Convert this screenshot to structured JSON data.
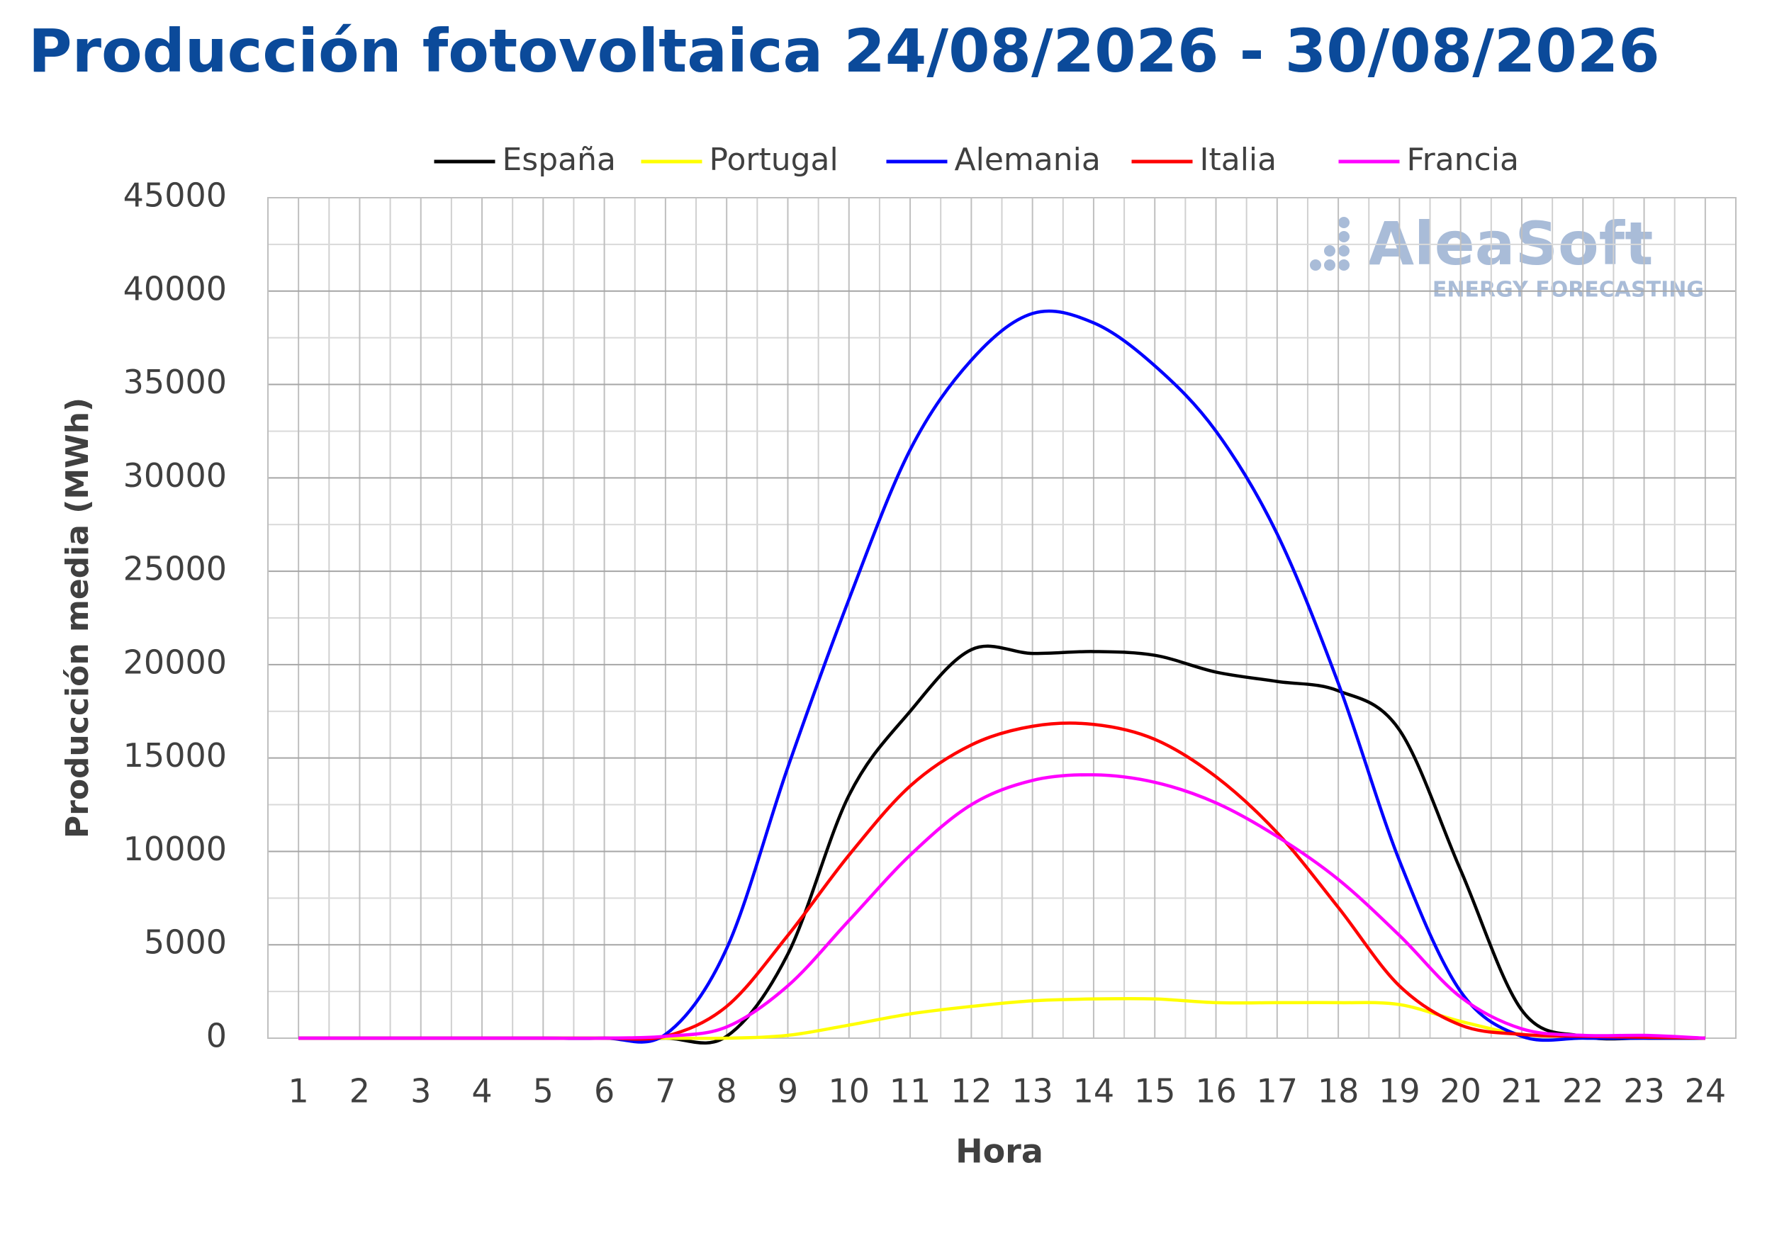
{
  "chart_data": {
    "type": "line",
    "title": "Producción fotovoltaica 24/08/2026 - 30/08/2026",
    "xlabel": "Hora",
    "ylabel": "Producción media (MWh)",
    "watermark": {
      "brand": "AleaSoft",
      "tagline": "ENERGY FORECASTING"
    },
    "x": [
      1,
      2,
      3,
      4,
      5,
      6,
      7,
      8,
      9,
      10,
      11,
      12,
      13,
      14,
      15,
      16,
      17,
      18,
      19,
      20,
      21,
      22,
      23,
      24
    ],
    "xlim": [
      0.5,
      24.5
    ],
    "xticks": [
      1,
      2,
      3,
      4,
      5,
      6,
      7,
      8,
      9,
      10,
      11,
      12,
      13,
      14,
      15,
      16,
      17,
      18,
      19,
      20,
      21,
      22,
      23,
      24
    ],
    "ylim": [
      0,
      45000
    ],
    "yticks": [
      0,
      5000,
      10000,
      15000,
      20000,
      25000,
      30000,
      35000,
      40000,
      45000
    ],
    "grid": true,
    "legend": "top",
    "series": [
      {
        "name": "España",
        "color": "#000000",
        "values": [
          0,
          0,
          0,
          0,
          0,
          0,
          0,
          100,
          4500,
          13000,
          17500,
          20800,
          20600,
          20700,
          20500,
          19600,
          19100,
          18600,
          16500,
          9000,
          1500,
          100,
          0,
          0
        ]
      },
      {
        "name": "Portugal",
        "color": "#ffff00",
        "values": [
          0,
          0,
          0,
          0,
          0,
          0,
          0,
          0,
          150,
          700,
          1300,
          1700,
          2000,
          2100,
          2100,
          1900,
          1900,
          1900,
          1800,
          900,
          200,
          100,
          50,
          0
        ]
      },
      {
        "name": "Alemania",
        "color": "#0000ff",
        "values": [
          0,
          0,
          0,
          0,
          0,
          0,
          200,
          4800,
          14500,
          23500,
          31500,
          36300,
          38800,
          38300,
          36000,
          32500,
          27000,
          19000,
          9500,
          2500,
          100,
          0,
          0,
          0
        ]
      },
      {
        "name": "Italia",
        "color": "#ff0000",
        "values": [
          0,
          0,
          0,
          0,
          0,
          0,
          100,
          1700,
          5500,
          9800,
          13500,
          15700,
          16700,
          16800,
          16000,
          14000,
          11000,
          7000,
          2800,
          700,
          200,
          100,
          50,
          0
        ]
      },
      {
        "name": "Francia",
        "color": "#ff00ff",
        "values": [
          0,
          0,
          0,
          0,
          0,
          0,
          100,
          600,
          2800,
          6300,
          9800,
          12500,
          13800,
          14100,
          13700,
          12600,
          10800,
          8500,
          5500,
          2200,
          500,
          150,
          150,
          0
        ]
      }
    ]
  }
}
